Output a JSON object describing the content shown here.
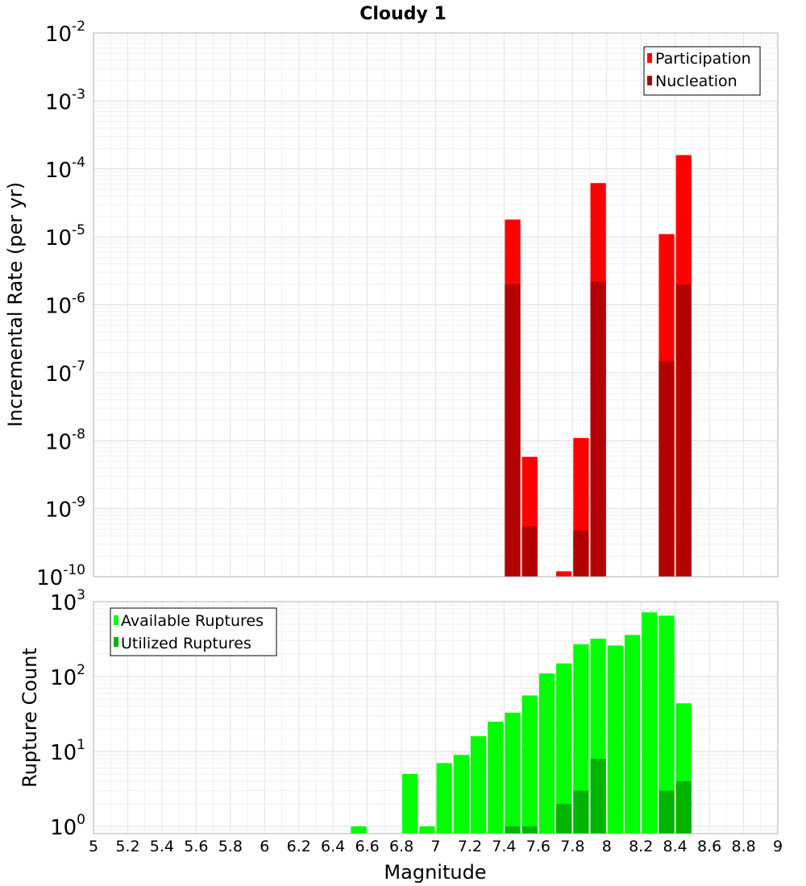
{
  "chart_data": [
    {
      "type": "bar",
      "title": "Cloudy 1",
      "xlabel": "Magnitude",
      "ylabel": "Incremental Rate (per yr)",
      "yscale": "log",
      "xlim": [
        5,
        9
      ],
      "ylim": [
        1e-10,
        0.01
      ],
      "ytick_exponents": [
        -10,
        -9,
        -8,
        -7,
        -6,
        -5,
        -4,
        -3,
        -2
      ],
      "grid": true,
      "legend_position": "top-right",
      "bar_width": 0.1,
      "series": [
        {
          "name": "Participation",
          "color": "#ff0000",
          "x": [
            7.45,
            7.55,
            7.75,
            7.85,
            7.95,
            8.35,
            8.45
          ],
          "values": [
            1.8e-05,
            5.8e-09,
            1.2e-10,
            1.1e-08,
            6.2e-05,
            1.1e-05,
            0.00016
          ]
        },
        {
          "name": "Nucleation",
          "color": "#b30000",
          "x": [
            7.45,
            7.55,
            7.85,
            7.95,
            8.35,
            8.45
          ],
          "values": [
            2e-06,
            5.5e-10,
            4.8e-10,
            2.2e-06,
            1.5e-07,
            2e-06
          ]
        }
      ]
    },
    {
      "type": "bar",
      "xlabel": "Magnitude",
      "ylabel": "Rupture Count",
      "yscale": "log",
      "xlim": [
        5,
        9
      ],
      "ylim": [
        0.8,
        1000
      ],
      "ytick_exponents": [
        0,
        1,
        2,
        3
      ],
      "xticks": [
        "5",
        "5.2",
        "5.4",
        "5.6",
        "5.8",
        "6",
        "6.2",
        "6.4",
        "6.6",
        "6.8",
        "7",
        "7.2",
        "7.4",
        "7.6",
        "7.8",
        "8",
        "8.2",
        "8.4",
        "8.6",
        "8.8",
        "9"
      ],
      "grid": true,
      "legend_position": "top-left",
      "bar_width": 0.1,
      "series": [
        {
          "name": "Available Ruptures",
          "color": "#00ff00",
          "x": [
            6.55,
            6.85,
            6.95,
            7.05,
            7.15,
            7.25,
            7.35,
            7.45,
            7.55,
            7.65,
            7.75,
            7.85,
            7.95,
            8.05,
            8.15,
            8.25,
            8.35,
            8.45
          ],
          "values": [
            1,
            5,
            1,
            7,
            9,
            16,
            25,
            33,
            56,
            110,
            150,
            270,
            320,
            260,
            360,
            720,
            650,
            44
          ]
        },
        {
          "name": "Utilized Ruptures",
          "color": "#00b400",
          "x": [
            7.45,
            7.55,
            7.75,
            7.85,
            7.95,
            8.35,
            8.45
          ],
          "values": [
            1,
            1,
            2,
            3,
            8,
            3,
            4
          ]
        }
      ]
    }
  ]
}
